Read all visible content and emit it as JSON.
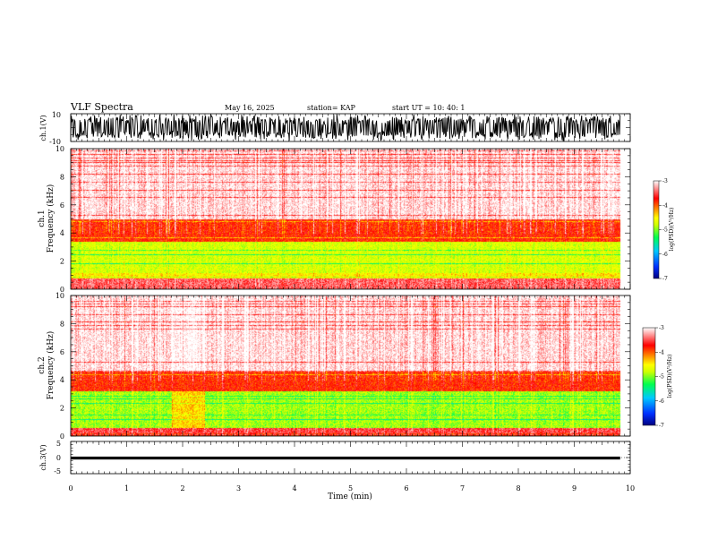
{
  "header": {
    "title": "VLF Spectra",
    "date": "May 16, 2025",
    "station": "station= KAP",
    "start_ut": "start  UT  =   10: 40: 1"
  },
  "chart_data": [
    {
      "type": "line",
      "panel": "ch1-waveform",
      "ylabel": "ch.1(V)",
      "ylim": [
        -10,
        10
      ],
      "yticks": [
        "10",
        "-10"
      ],
      "xlim": [
        0,
        10
      ],
      "description_values": {
        "approx_min": -10,
        "approx_max": 10
      }
    },
    {
      "type": "heatmap",
      "panel": "ch1-spectrogram",
      "ylabel": "ch.1\nFrequency (kHz)",
      "ylim": [
        0,
        10
      ],
      "yticks": [
        "0",
        "2",
        "4",
        "6",
        "8",
        "10"
      ],
      "xlim": [
        0,
        10
      ],
      "bands": [
        {
          "from": 0,
          "to": 0.8,
          "level": -3.5
        },
        {
          "from": 0.8,
          "to": 1.2,
          "level": -4.6
        },
        {
          "from": 1.2,
          "to": 3.4,
          "level": -4.9
        },
        {
          "from": 3.4,
          "to": 5.0,
          "level": -3.9
        },
        {
          "from": 5.0,
          "to": 10,
          "level": -3.1
        }
      ],
      "colorbar": {
        "label": "log(PSD)(V²/Hz)",
        "ticks": [
          "-3",
          "-4",
          "-5",
          "-6",
          "-7"
        ],
        "range": [
          -7,
          -3
        ]
      }
    },
    {
      "type": "heatmap",
      "panel": "ch2-spectrogram",
      "ylabel": "ch.2\nFrequency (kHz)",
      "ylim": [
        0,
        10
      ],
      "yticks": [
        "0",
        "2",
        "4",
        "6",
        "8",
        "10"
      ],
      "xlim": [
        0,
        10
      ],
      "bands": [
        {
          "from": 0,
          "to": 0.6,
          "level": -3.6
        },
        {
          "from": 0.6,
          "to": 3.2,
          "level": -5.1
        },
        {
          "from": 3.2,
          "to": 4.6,
          "level": -3.9
        },
        {
          "from": 4.6,
          "to": 10,
          "level": -3.1
        }
      ],
      "colorbar": {
        "label": "log(PSD)(V²/Hz)",
        "ticks": [
          "-3",
          "-4",
          "-5",
          "-6",
          "-7"
        ],
        "range": [
          -7,
          -3
        ]
      }
    },
    {
      "type": "line",
      "panel": "ch3-waveform",
      "ylabel": "ch.3(V)",
      "ylim": [
        -5,
        5
      ],
      "yticks": [
        "5",
        "0",
        "-5"
      ],
      "xlim": [
        0,
        10
      ],
      "values_approx": {
        "center": 0,
        "band": [
          -0.6,
          0.3
        ]
      }
    }
  ],
  "x_axis": {
    "label": "Time (min)",
    "ticks": [
      "0",
      "1",
      "2",
      "3",
      "4",
      "5",
      "6",
      "7",
      "8",
      "9",
      "10"
    ],
    "data_end_min": 9.82
  },
  "colors": {
    "scale": [
      "#000090",
      "#0040ff",
      "#00c0ff",
      "#00ff40",
      "#c8ff00",
      "#ffff00",
      "#ff8000",
      "#ff0000",
      "#ffffff"
    ]
  }
}
